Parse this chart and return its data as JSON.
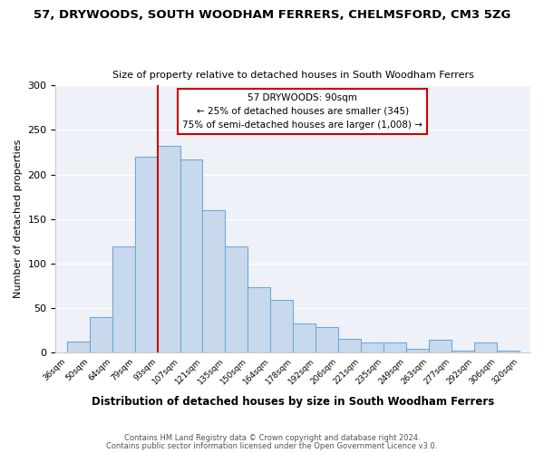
{
  "title1": "57, DRYWOODS, SOUTH WOODHAM FERRERS, CHELMSFORD, CM3 5ZG",
  "title2": "Size of property relative to detached houses in South Woodham Ferrers",
  "xlabel": "Distribution of detached houses by size in South Woodham Ferrers",
  "ylabel": "Number of detached properties",
  "bin_labels": [
    "36sqm",
    "50sqm",
    "64sqm",
    "79sqm",
    "93sqm",
    "107sqm",
    "121sqm",
    "135sqm",
    "150sqm",
    "164sqm",
    "178sqm",
    "192sqm",
    "206sqm",
    "221sqm",
    "235sqm",
    "249sqm",
    "263sqm",
    "277sqm",
    "292sqm",
    "306sqm",
    "320sqm"
  ],
  "bar_values": [
    12,
    40,
    119,
    220,
    232,
    217,
    160,
    119,
    73,
    59,
    33,
    28,
    15,
    11,
    11,
    4,
    14,
    2,
    11,
    2
  ],
  "bar_color": "#c9d9ed",
  "bar_edge_color": "#6fa8d6",
  "vline_position": 4.0,
  "vline_color": "#cc0000",
  "annotation_title": "57 DRYWOODS: 90sqm",
  "annotation_line1": "← 25% of detached houses are smaller (345)",
  "annotation_line2": "75% of semi-detached houses are larger (1,008) →",
  "annotation_box_color": "#cc0000",
  "footer1": "Contains HM Land Registry data © Crown copyright and database right 2024.",
  "footer2": "Contains public sector information licensed under the Open Government Licence v3.0.",
  "ylim": [
    0,
    300
  ],
  "yticks": [
    0,
    50,
    100,
    150,
    200,
    250,
    300
  ],
  "background_color": "#eef2f8",
  "plot_background": "#ffffff"
}
